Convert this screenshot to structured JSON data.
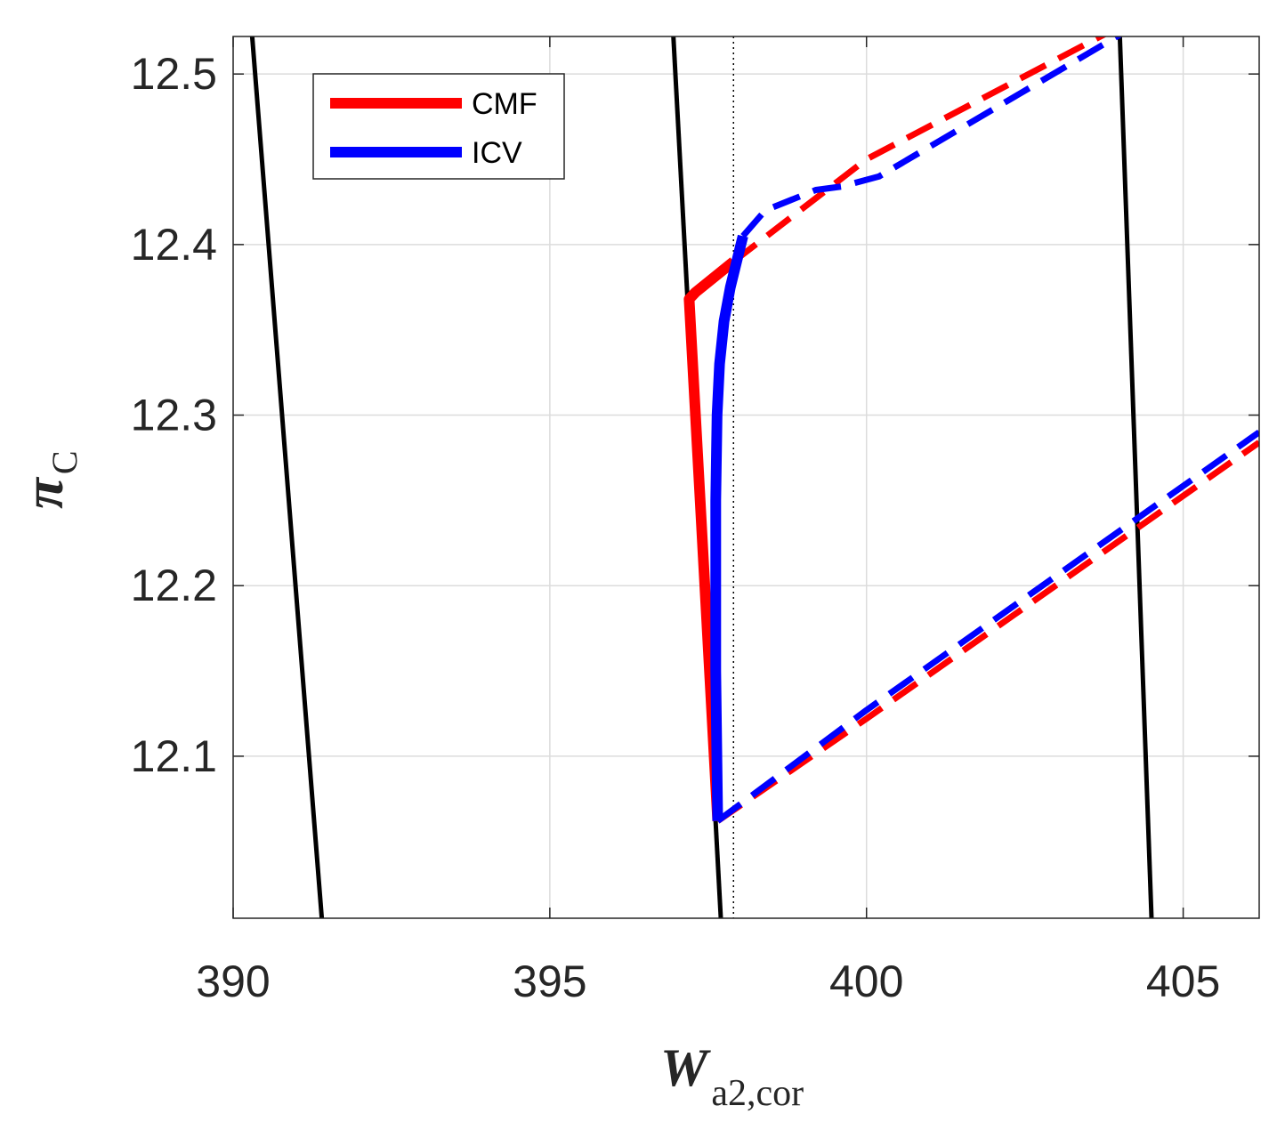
{
  "chart_data": {
    "type": "line",
    "title": "",
    "xlabel": {
      "main": "W",
      "sub": "a2,cor"
    },
    "ylabel": {
      "main": "π",
      "sub": "C"
    },
    "xlim": [
      390,
      406.2
    ],
    "ylim": [
      12.005,
      12.522
    ],
    "xticks": [
      390,
      395,
      400,
      405
    ],
    "yticks": [
      12.1,
      12.2,
      12.3,
      12.4,
      12.5
    ],
    "xtick_labels": [
      "390",
      "395",
      "400",
      "405"
    ],
    "ytick_labels": [
      "12.1",
      "12.2",
      "12.3",
      "12.4",
      "12.5"
    ],
    "grid": true,
    "legend": {
      "position": "top-left",
      "entries": [
        "CMF",
        "ICV"
      ]
    },
    "reference_line": {
      "x": 397.9,
      "style": "dotted",
      "color": "#000000"
    },
    "series": [
      {
        "name": "CMF",
        "role": "solid",
        "color": "#ff0000",
        "x": [
          397.65,
          397.2,
          397.3,
          397.9
        ],
        "y": [
          12.062,
          12.368,
          12.372,
          12.39
        ]
      },
      {
        "name": "ICV",
        "role": "solid",
        "color": "#0000ff",
        "x": [
          397.65,
          397.62,
          397.62,
          397.64,
          397.68,
          397.75,
          397.85,
          397.95,
          398.05
        ],
        "y": [
          12.062,
          12.15,
          12.25,
          12.3,
          12.33,
          12.355,
          12.375,
          12.39,
          12.405
        ]
      },
      {
        "role": "dashed",
        "color": "#ff0000",
        "x": [
          397.9,
          400,
          404.0
        ],
        "y": [
          12.39,
          12.45,
          12.528
        ]
      },
      {
        "role": "dashed",
        "color": "#0000ff",
        "x": [
          398.05,
          398.4,
          399.2,
          399.6,
          400.2,
          404.0
        ],
        "y": [
          12.405,
          12.42,
          12.432,
          12.434,
          12.44,
          12.523
        ]
      },
      {
        "role": "dashed",
        "color": "#ff0000",
        "x": [
          397.65,
          400,
          406.2
        ],
        "y": [
          12.062,
          12.122,
          12.284
        ]
      },
      {
        "role": "dashed",
        "color": "#0000ff",
        "x": [
          397.65,
          400,
          406.2
        ],
        "y": [
          12.062,
          12.127,
          12.29
        ]
      },
      {
        "role": "speedline",
        "color": "#000000",
        "x": [
          390.3,
          391.4
        ],
        "y": [
          12.522,
          12.005
        ]
      },
      {
        "role": "speedline",
        "color": "#000000",
        "x": [
          396.95,
          397.7
        ],
        "y": [
          12.522,
          12.005
        ]
      },
      {
        "role": "speedline",
        "color": "#000000",
        "x": [
          404.0,
          404.5
        ],
        "y": [
          12.522,
          12.005
        ]
      }
    ]
  }
}
